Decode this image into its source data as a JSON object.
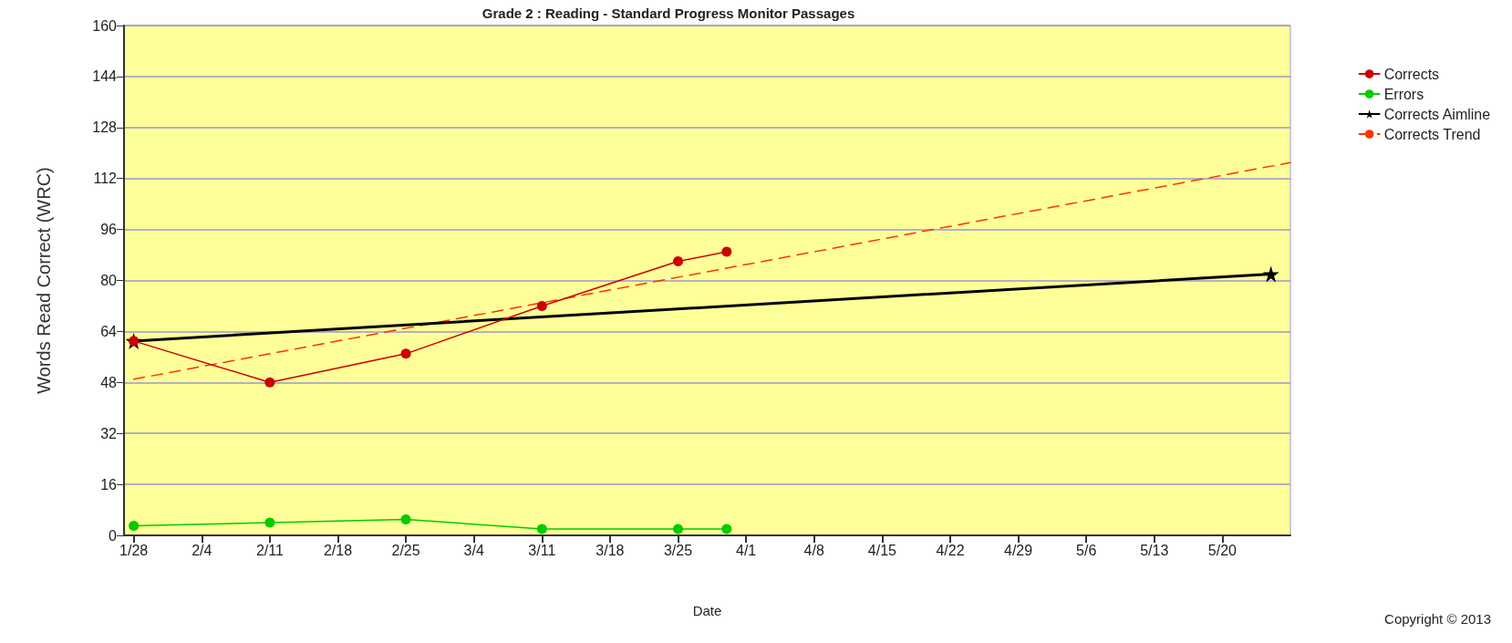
{
  "chart_data": {
    "type": "line",
    "title": "Grade 2 : Reading - Standard Progress Monitor Passages",
    "xlabel": "Date",
    "ylabel": "Words Read Correct (WRC)",
    "annotations": [
      "Copyright © 2013"
    ],
    "xlim": [
      "--01-27",
      "--05-27"
    ],
    "xticks": [
      {
        "value": "--01-28",
        "label": "1/28"
      },
      {
        "value": "--02-04",
        "label": "2/4"
      },
      {
        "value": "--02-11",
        "label": "2/11"
      },
      {
        "value": "--02-18",
        "label": "2/18"
      },
      {
        "value": "--02-25",
        "label": "2/25"
      },
      {
        "value": "--03-04",
        "label": "3/4"
      },
      {
        "value": "--03-11",
        "label": "3/11"
      },
      {
        "value": "--03-18",
        "label": "3/18"
      },
      {
        "value": "--03-25",
        "label": "3/25"
      },
      {
        "value": "--04-01",
        "label": "4/1"
      },
      {
        "value": "--04-08",
        "label": "4/8"
      },
      {
        "value": "--04-15",
        "label": "4/15"
      },
      {
        "value": "--04-22",
        "label": "4/22"
      },
      {
        "value": "--04-29",
        "label": "4/29"
      },
      {
        "value": "--05-06",
        "label": "5/6"
      },
      {
        "value": "--05-13",
        "label": "5/13"
      },
      {
        "value": "--05-20",
        "label": "5/20"
      }
    ],
    "ylim": [
      0,
      160
    ],
    "yticks": [
      0,
      16,
      32,
      48,
      64,
      80,
      96,
      112,
      128,
      144,
      160
    ],
    "grid": "y",
    "legend": "right",
    "series": [
      {
        "name": "Corrects",
        "color": "#cc0000",
        "marker": "circle",
        "line_style": "solid",
        "x": [
          "--01-28",
          "--02-11",
          "--02-25",
          "--03-11",
          "--03-25",
          "--03-30"
        ],
        "values": [
          61,
          48,
          57,
          72,
          86,
          89
        ]
      },
      {
        "name": "Errors",
        "color": "#00cc00",
        "marker": "circle",
        "line_style": "solid",
        "x": [
          "--01-28",
          "--02-11",
          "--02-25",
          "--03-11",
          "--03-25",
          "--03-30"
        ],
        "values": [
          3,
          4,
          5,
          2,
          2,
          2
        ]
      },
      {
        "name": "Corrects Aimline",
        "color": "#000000",
        "marker": "star",
        "line_style": "solid",
        "x": [
          "--01-28",
          "--05-25"
        ],
        "values": [
          61,
          82
        ]
      },
      {
        "name": "Corrects Trend",
        "color": "#ff3300",
        "marker": "none",
        "line_style": "dashed",
        "x": [
          "--01-28",
          "--05-27"
        ],
        "values": [
          49,
          117
        ]
      }
    ]
  }
}
